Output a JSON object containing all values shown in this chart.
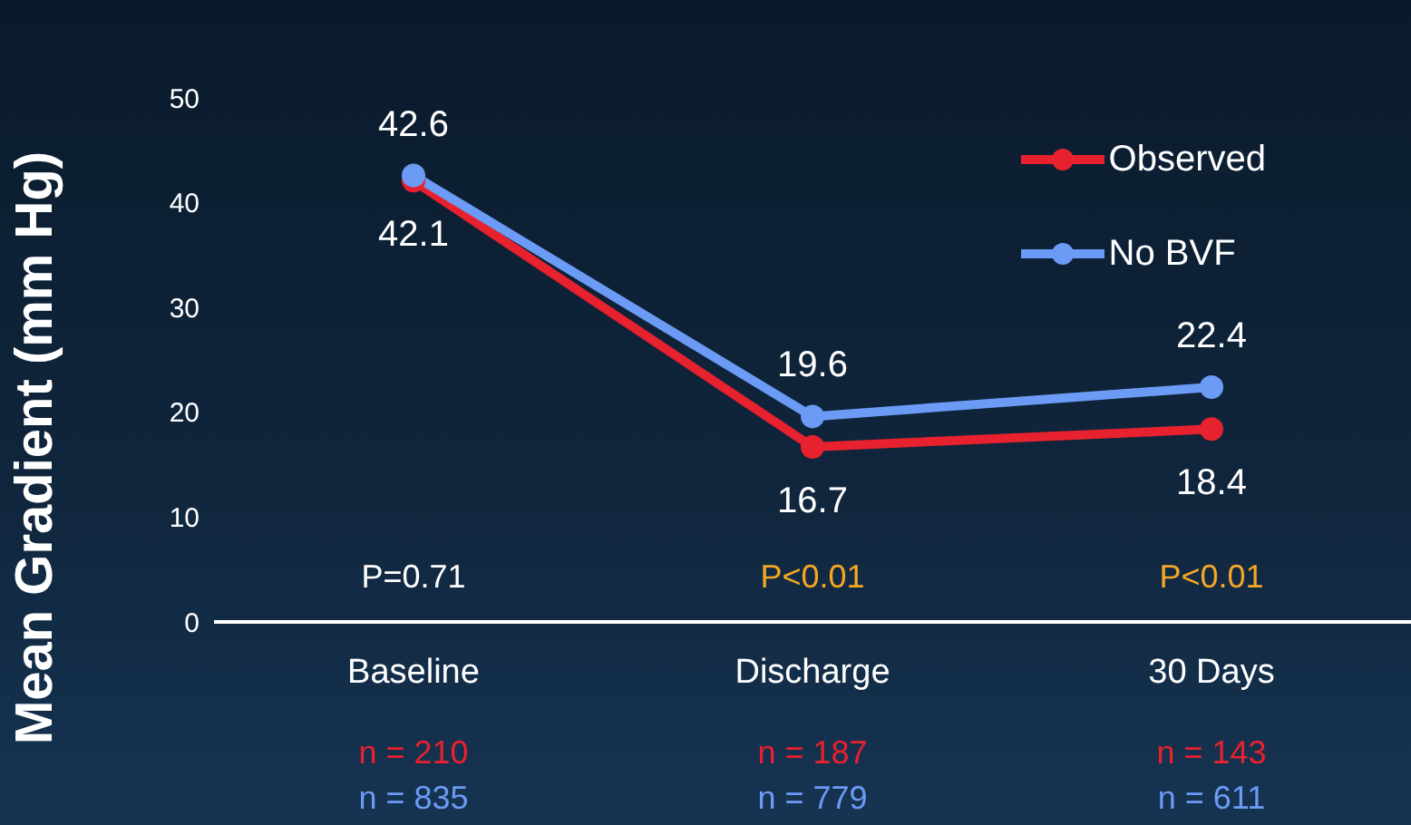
{
  "chart_data": {
    "type": "line",
    "ylabel": "Mean Gradient (mm Hg)",
    "categories": [
      "Baseline",
      "Discharge",
      "30 Days"
    ],
    "series": [
      {
        "name": "Observed",
        "color": "#e8212f",
        "values": [
          42.1,
          16.7,
          18.4
        ]
      },
      {
        "name": "No BVF",
        "color": "#6b9bf5",
        "values": [
          42.6,
          19.6,
          22.4
        ]
      }
    ],
    "ylim": [
      0,
      50
    ],
    "yticks": [
      0,
      10,
      20,
      30,
      40,
      50
    ],
    "grid": false,
    "legend": "top right",
    "marker": "circle",
    "line_style": "solid",
    "data_labels": true,
    "annotations": [
      "P=0.71",
      "P<0.01",
      "P<0.01",
      "n = 210",
      "n = 835",
      "n = 187",
      "n = 779",
      "n = 143",
      "n = 611"
    ]
  }
}
